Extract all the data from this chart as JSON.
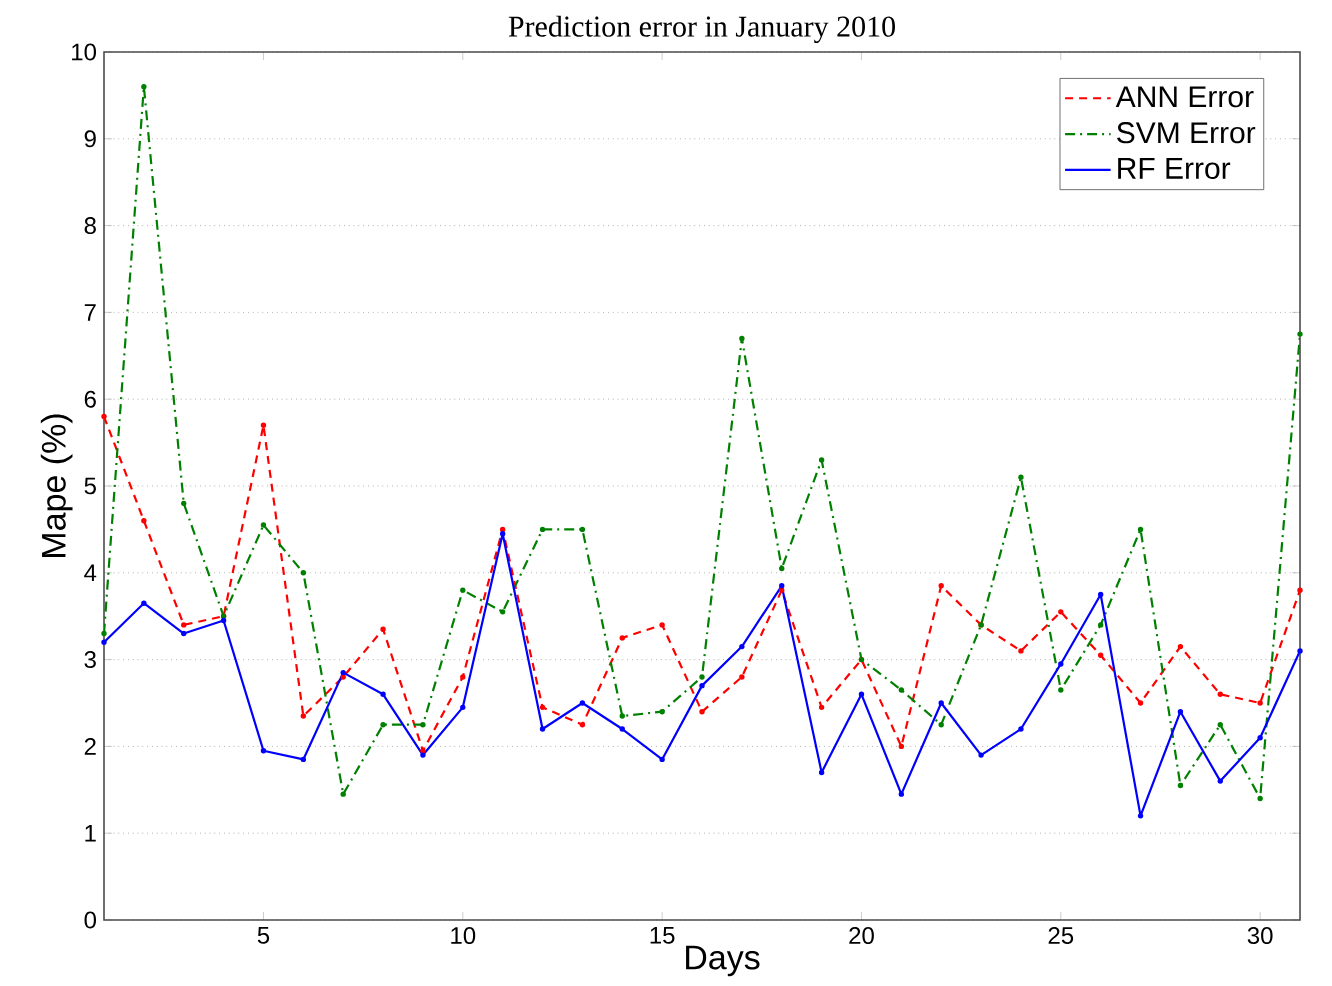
{
  "chart_data": {
    "type": "line",
    "title": "Prediction error in January 2010",
    "xlabel": "Days",
    "ylabel": "Mape (%)",
    "x": [
      1,
      2,
      3,
      4,
      5,
      6,
      7,
      8,
      9,
      10,
      11,
      12,
      13,
      14,
      15,
      16,
      17,
      18,
      19,
      20,
      21,
      22,
      23,
      24,
      25,
      26,
      27,
      28,
      29,
      30,
      31
    ],
    "series": [
      {
        "name": "ANN Error",
        "color": "#ff0000",
        "line_style": "dashed",
        "values": [
          5.8,
          4.6,
          3.4,
          3.5,
          5.7,
          2.35,
          2.8,
          3.35,
          1.95,
          2.8,
          4.5,
          2.45,
          2.25,
          3.25,
          3.4,
          2.4,
          2.8,
          3.8,
          2.45,
          3.0,
          2.0,
          3.85,
          3.4,
          3.1,
          3.55,
          3.05,
          2.5,
          3.15,
          2.6,
          2.5,
          3.8
        ]
      },
      {
        "name": "SVM Error",
        "color": "#008000",
        "line_style": "dashdot",
        "values": [
          3.3,
          9.6,
          4.8,
          3.5,
          4.55,
          4.0,
          1.45,
          2.25,
          2.25,
          3.8,
          3.55,
          4.5,
          4.5,
          2.35,
          2.4,
          2.8,
          6.7,
          4.05,
          5.3,
          3.0,
          2.65,
          2.25,
          3.4,
          5.1,
          2.65,
          3.4,
          4.5,
          1.55,
          2.25,
          1.4,
          6.75
        ]
      },
      {
        "name": "RF Error",
        "color": "#0000ff",
        "line_style": "solid",
        "values": [
          3.2,
          3.65,
          3.3,
          3.45,
          1.95,
          1.85,
          2.85,
          2.6,
          1.9,
          2.45,
          4.45,
          2.2,
          2.5,
          2.2,
          1.85,
          2.7,
          3.15,
          3.85,
          1.7,
          2.6,
          1.45,
          2.5,
          1.9,
          2.2,
          2.95,
          3.75,
          1.2,
          2.4,
          1.6,
          2.1,
          3.1
        ]
      }
    ],
    "xlim": [
      1,
      31
    ],
    "xticks": [
      5,
      10,
      15,
      20,
      25,
      30
    ],
    "ylim": [
      0,
      10
    ],
    "yticks": [
      0,
      1,
      2,
      3,
      4,
      5,
      6,
      7,
      8,
      9,
      10
    ],
    "grid": "y",
    "legend": "top right",
    "marker": "circle"
  }
}
